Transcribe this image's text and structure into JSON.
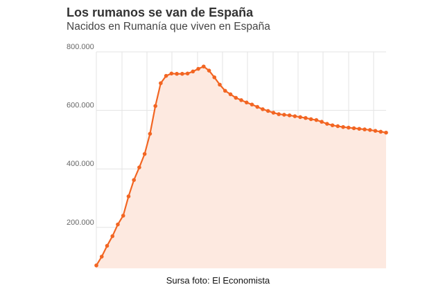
{
  "title": "Los rumanos se van de España",
  "subtitle": "Nacidos en Rumanía que viven en España",
  "credit": "Sursa foto: El Economista",
  "chart_data": {
    "type": "area",
    "ylim": [
      60000,
      800000
    ],
    "yticks": [
      {
        "value": 800000,
        "label": "800.000"
      },
      {
        "value": 600000,
        "label": "600.000"
      },
      {
        "value": 400000,
        "label": "400.000"
      },
      {
        "value": 200000,
        "label": "200.000"
      }
    ],
    "values": [
      70000,
      100000,
      137000,
      170000,
      210000,
      240000,
      306000,
      362000,
      405000,
      451000,
      520000,
      615000,
      693000,
      718000,
      726000,
      725000,
      725000,
      726000,
      733000,
      742000,
      750000,
      736000,
      713000,
      688000,
      667000,
      655000,
      643000,
      635000,
      627000,
      620000,
      612000,
      604000,
      598000,
      592000,
      587000,
      585000,
      583000,
      580000,
      577000,
      574000,
      570000,
      567000,
      561000,
      554000,
      549000,
      546000,
      543000,
      541000,
      539000,
      537000,
      535000,
      533000,
      530000,
      527000,
      524000
    ],
    "grid": true,
    "colors": {
      "line": "#f26522",
      "fill": "#fde9e0",
      "grid": "#e3e3e3"
    }
  }
}
